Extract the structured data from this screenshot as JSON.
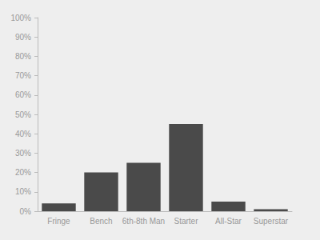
{
  "chart_data": {
    "type": "bar",
    "categories": [
      "Fringe",
      "Bench",
      "6th-8th Man",
      "Starter",
      "All-Star",
      "Superstar"
    ],
    "values": [
      4,
      20,
      25,
      45,
      5,
      1
    ],
    "color": "#4a4a4a",
    "ylim": [
      0,
      100
    ],
    "yticks": [
      {
        "value": 0,
        "label": "0%"
      },
      {
        "value": 10,
        "label": "10%"
      },
      {
        "value": 20,
        "label": "20%"
      },
      {
        "value": 30,
        "label": "30%"
      },
      {
        "value": 40,
        "label": "40%"
      },
      {
        "value": 50,
        "label": "50%"
      },
      {
        "value": 60,
        "label": "60%"
      },
      {
        "value": 70,
        "label": "70%"
      },
      {
        "value": 80,
        "label": "80%"
      },
      {
        "value": 90,
        "label": "90%"
      },
      {
        "value": 100,
        "label": "100%"
      }
    ],
    "grid": false
  }
}
